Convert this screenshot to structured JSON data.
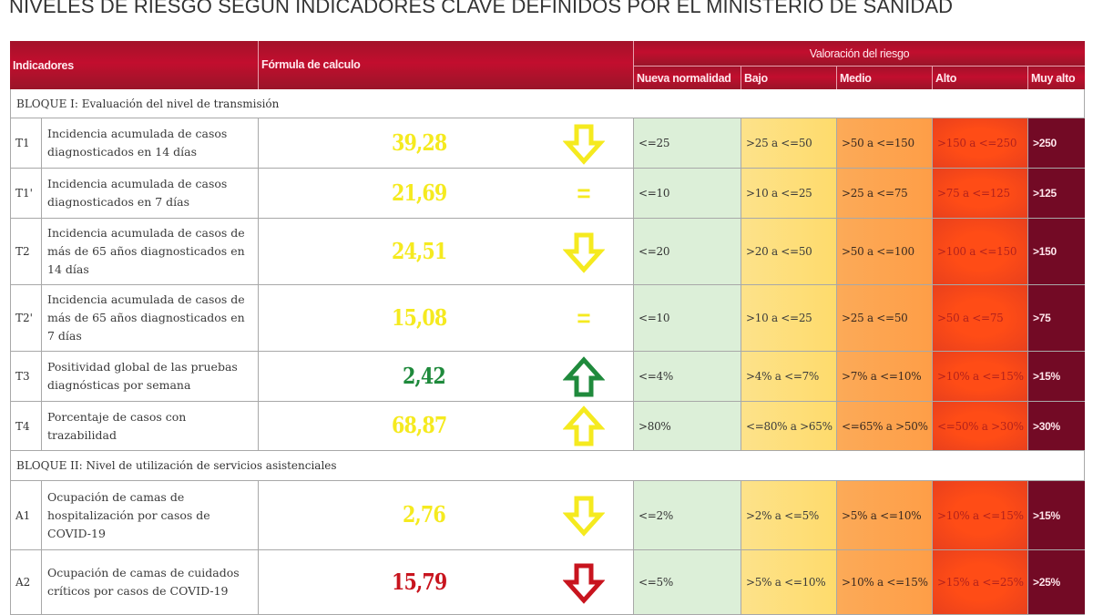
{
  "title": "NIVELES DE RIESGO SEGÚN INDICADORES CLAVE DEFINIDOS POR EL MINISTERIO DE SANIDAD",
  "header": {
    "indicadores": "Indicadores",
    "formula": "Fórmula de calculo",
    "valoracion": "Valoración del riesgo",
    "levels": [
      "Nueva normalidad",
      "Bajo",
      "Medio",
      "Alto",
      "Muy alto"
    ]
  },
  "colors": {
    "header_red": "#c20e2e",
    "nueva_normalidad": "#dcefd8",
    "bajo": "#fedb6c",
    "medio": "#fe9e47",
    "alto": "#ff4c16",
    "muy_alto": "#730a25",
    "value_yellow": "#f5ea1f",
    "value_green": "#1f8a3c",
    "value_red": "#c8141e"
  },
  "blocks": [
    {
      "label": "BLOQUE I: Evaluación del nivel de transmisión",
      "rows": [
        {
          "code": "T1",
          "description": "Incidencia acumulada de casos diagnosticados en 14 días",
          "value": "39,28",
          "value_color": "yellow",
          "trend": "down-arrow",
          "levels": [
            "<=25",
            ">25 a <=50",
            ">50 a <=150",
            ">150 a <=250",
            ">250"
          ]
        },
        {
          "code": "T1'",
          "description": "Incidencia acumulada de casos diagnosticados en 7 días",
          "value": "21,69",
          "value_color": "yellow",
          "trend": "equal",
          "levels": [
            "<=10",
            ">10 a <=25",
            ">25 a <=75",
            ">75 a <=125",
            ">125"
          ]
        },
        {
          "code": "T2",
          "description": "Incidencia acumulada de casos de más de 65 años diagnosticados en 14 días",
          "value": "24,51",
          "value_color": "yellow",
          "trend": "down-arrow",
          "levels": [
            "<=20",
            ">20 a <=50",
            ">50 a <=100",
            ">100 a <=150",
            ">150"
          ]
        },
        {
          "code": "T2'",
          "description": "Incidencia acumulada de casos de más de 65 años diagnosticados en 7 días",
          "value": "15,08",
          "value_color": "yellow",
          "trend": "equal",
          "levels": [
            "<=10",
            ">10 a <=25",
            ">25 a <=50",
            ">50 a <=75",
            ">75"
          ]
        },
        {
          "code": "T3",
          "description": "Positividad global de las pruebas diagnósticas por semana",
          "value": "2,42",
          "value_color": "green",
          "trend": "up-arrow",
          "levels": [
            "<=4%",
            ">4% a <=7%",
            ">7% a <=10%",
            ">10% a <=15%",
            ">15%"
          ]
        },
        {
          "code": "T4",
          "description": "Porcentaje de casos con trazabilidad",
          "value": "68,87",
          "value_color": "yellow",
          "trend": "up-arrow",
          "levels": [
            ">80%",
            "<=80% a >65%",
            "<=65% a >50%",
            "<=50% a >30%",
            ">30%"
          ]
        }
      ]
    },
    {
      "label": "BLOQUE II: Nivel de utilización de servicios asistenciales",
      "rows": [
        {
          "code": "A1",
          "description": "Ocupación de camas de hospitalización por casos de COVID-19",
          "value": "2,76",
          "value_color": "yellow",
          "trend": "down-arrow",
          "levels": [
            "<=2%",
            ">2% a <=5%",
            ">5% a <=10%",
            ">10% a <=15%",
            ">15%"
          ]
        },
        {
          "code": "A2",
          "description": "Ocupación de camas de cuidados críticos por casos de COVID-19",
          "value": "15,79",
          "value_color": "red",
          "trend": "down-arrow",
          "levels": [
            "<=5%",
            ">5% a <=10%",
            ">10% a <=15%",
            ">15% a <=25%",
            ">25%"
          ]
        }
      ]
    }
  ]
}
